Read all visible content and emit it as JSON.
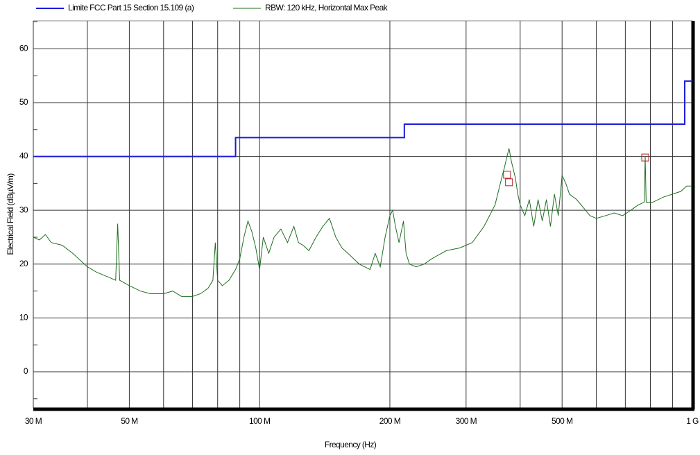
{
  "chart_data": {
    "type": "line",
    "xlabel": "Frequency (Hz)",
    "ylabel": "Electrical Field (dBµV/m)",
    "xscale": "log",
    "grid": true,
    "legend": "top",
    "xlim": [
      30000000,
      1000000000
    ],
    "ylim": [
      -6.7,
      65.2
    ],
    "xticks": [
      {
        "value": 30000000,
        "label": "30 M"
      },
      {
        "value": 50000000,
        "label": "50 M"
      },
      {
        "value": 100000000,
        "label": "100 M"
      },
      {
        "value": 200000000,
        "label": "200 M"
      },
      {
        "value": 300000000,
        "label": "300 M"
      },
      {
        "value": 500000000,
        "label": "500 M"
      },
      {
        "value": 1000000000,
        "label": "1 G"
      }
    ],
    "xminor": [
      40000000,
      60000000,
      70000000,
      80000000,
      90000000,
      400000000,
      600000000,
      700000000,
      800000000,
      900000000
    ],
    "yticks": [
      0,
      10,
      20,
      30,
      40,
      50,
      60
    ],
    "yminor": [
      -5,
      5,
      15,
      25,
      35,
      45,
      55,
      65
    ],
    "series": [
      {
        "name": "Limite FCC Part 15 Section 15.109 (a)",
        "color": "#1a1adc",
        "x": [
          30000000,
          88000000,
          88000000,
          216000000,
          216000000,
          960000000,
          960000000,
          1000000000
        ],
        "values": [
          40,
          40,
          43.5,
          43.5,
          46,
          46,
          54,
          54
        ]
      },
      {
        "name": "RBW: 120 kHz, Horizontal Max Peak",
        "color": "#1e6e1e",
        "x": [
          30000000,
          31000000,
          32000000,
          33000000,
          35000000,
          37000000,
          40000000,
          42000000,
          45000000,
          46500000,
          47000000,
          47500000,
          50000000,
          53000000,
          56000000,
          60000000,
          63000000,
          66000000,
          70000000,
          73000000,
          76000000,
          78000000,
          79000000,
          80000000,
          82000000,
          85000000,
          88000000,
          90000000,
          92000000,
          94000000,
          96000000,
          98000000,
          100000000,
          102000000,
          105000000,
          108000000,
          112000000,
          116000000,
          120000000,
          123000000,
          126000000,
          130000000,
          135000000,
          140000000,
          145000000,
          150000000,
          155000000,
          160000000,
          170000000,
          180000000,
          185000000,
          190000000,
          195000000,
          200000000,
          203000000,
          206000000,
          210000000,
          215000000,
          218000000,
          222000000,
          230000000,
          240000000,
          250000000,
          270000000,
          290000000,
          310000000,
          330000000,
          350000000,
          360000000,
          368000000,
          373000000,
          377000000,
          382000000,
          390000000,
          395000000,
          400000000,
          410000000,
          420000000,
          430000000,
          440000000,
          450000000,
          460000000,
          470000000,
          480000000,
          490000000,
          500000000,
          510000000,
          520000000,
          540000000,
          560000000,
          580000000,
          600000000,
          630000000,
          660000000,
          690000000,
          720000000,
          750000000,
          774000000,
          778000000,
          782000000,
          810000000,
          860000000,
          900000000,
          940000000,
          970000000,
          1000000000
        ],
        "values": [
          25,
          24.5,
          25.5,
          24,
          23.5,
          22,
          19.5,
          18.5,
          17.5,
          17,
          27.5,
          17,
          16,
          15,
          14.5,
          14.5,
          15,
          14,
          14,
          14.5,
          15.5,
          17,
          24,
          17,
          16,
          17,
          19,
          21,
          25,
          28,
          26,
          23,
          19,
          25,
          22,
          25,
          26.5,
          24,
          27,
          24,
          23.5,
          22.5,
          25,
          27,
          28.5,
          25,
          23,
          22,
          20,
          19,
          22,
          19.5,
          25,
          29,
          30,
          27,
          24,
          28,
          22,
          20,
          19.5,
          20,
          21,
          22.5,
          23,
          24,
          27,
          31,
          35,
          38,
          40,
          41.5,
          39,
          36,
          33,
          31,
          29,
          32,
          27,
          32,
          28,
          32,
          27,
          33,
          29,
          36.5,
          35,
          33,
          32,
          30.5,
          29,
          28.5,
          29,
          29.5,
          29,
          30,
          31,
          31.5,
          40,
          31.5,
          31.5,
          32.5,
          33,
          33.5,
          34.5,
          34.5
        ]
      }
    ],
    "markers": {
      "color": "#b22222",
      "x": [
        373000000,
        377000000,
        778000000
      ],
      "values": [
        36.6,
        35.2,
        39.8
      ]
    }
  }
}
